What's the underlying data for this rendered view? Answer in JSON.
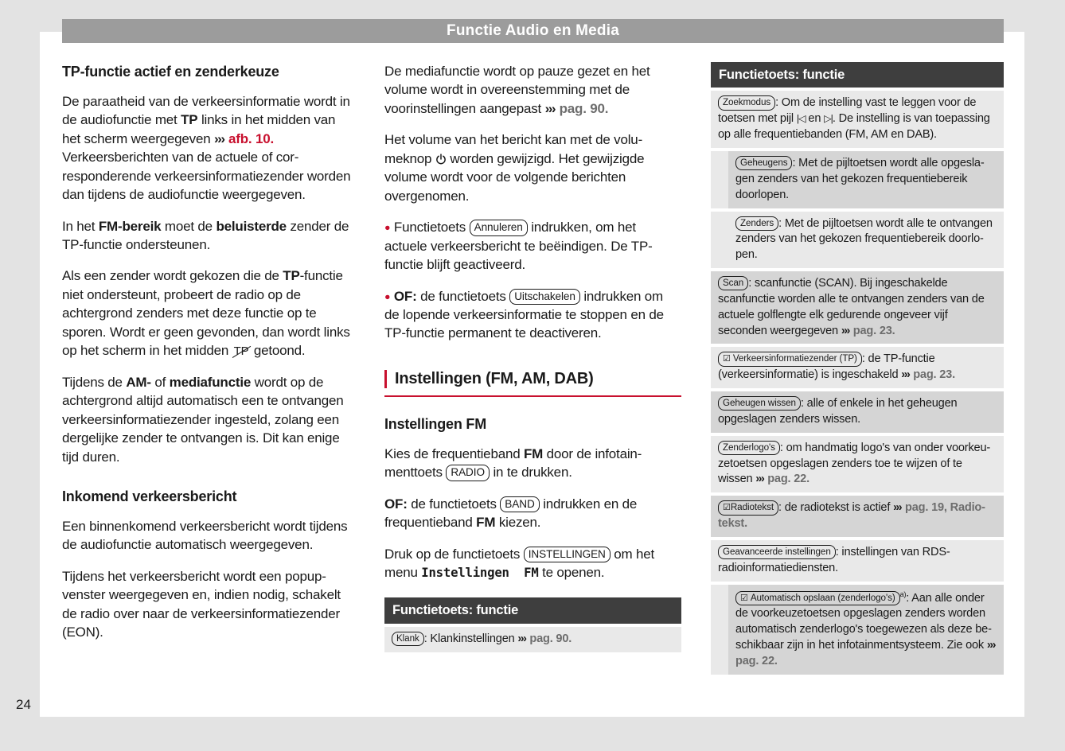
{
  "page_header": {
    "title": "Functie Audio en Media"
  },
  "page_number": "24",
  "colors": {
    "accent_red": "#c8102e",
    "header_gray": "#9c9c9c",
    "table_header_dark": "#3e3e3e",
    "row_light": "#e9e9e9",
    "row_dark": "#d5d5d5",
    "page_margin_gray": "#e3e3e3"
  },
  "icons": {
    "checkbox": "☑",
    "tp_off": "TP",
    "seek_back": "|◁",
    "seek_fwd": "▷|",
    "power": "power-symbol",
    "chevrons": "›››"
  },
  "left": {
    "heading1": "TP-functie actief en zenderkeuze",
    "p1": [
      {
        "t": "De paraatheid van de verkeersinformatie wordt in de audiofunctie met "
      },
      {
        "b": "TP"
      },
      {
        "t": " links in het midden van het scherm weergegeven "
      },
      {
        "chev": "›››"
      },
      {
        "figref": " afb. 10."
      },
      {
        "t": " Verkeersberichten van de actuele of cor­responderende verkeersinformatiezender worden dan tijdens de audiofunctie weerge­geven."
      }
    ],
    "p2": [
      {
        "t": "In het "
      },
      {
        "b": "FM-bereik"
      },
      {
        "t": " moet de "
      },
      {
        "b": "beluisterde"
      },
      {
        "t": " zender de TP-functie ondersteunen."
      }
    ],
    "p3": [
      {
        "t": "Als een zender wordt gekozen die de "
      },
      {
        "b": "TP"
      },
      {
        "t": "-functie niet ondersteunt, probeert de radio op de achtergrond zenders met deze functie op te sporen. Wordt er geen gevonden, dan wordt links op het scherm in het midden "
      },
      {
        "icon": "tp-off"
      },
      {
        "t": " getoond."
      }
    ],
    "p4": [
      {
        "t": "Tijdens de "
      },
      {
        "b": "AM-"
      },
      {
        "t": " of "
      },
      {
        "b": "mediafunctie"
      },
      {
        "t": " wordt op de achtergrond altijd automatisch een te ont­vangen verkeersinformatiezender ingesteld, zolang een dergelijke zender te ontvangen is. Dit kan enige tijd duren."
      }
    ],
    "heading2": "Inkomend verkeersbericht",
    "p5": [
      {
        "t": "Een binnenkomend verkeersbericht wordt tij­dens de audiofunctie automatisch weergege­ven."
      }
    ],
    "p6": [
      {
        "t": "Tijdens het verkeersbericht wordt een popup­venster weergegeven en, indien nodig, scha­kelt de radio over naar de verkeersinformatie­zender (EON)."
      }
    ]
  },
  "middle": {
    "p1": [
      {
        "t": "De mediafunctie wordt op pauze gezet en het volume wordt in overeenstemming met de voorinstellingen aangepast "
      },
      {
        "chev": "›››"
      },
      {
        "ref": " pag. 90."
      }
    ],
    "p2": [
      {
        "t": "Het volume van het bericht kan met de volu­meknop "
      },
      {
        "icon": "power"
      },
      {
        "t": " worden gewijzigd. Het gewijzigde volume wordt voor de volgende berichten overgenomen."
      }
    ],
    "bullets": [
      [
        {
          "dot": "●"
        },
        {
          "t": " Functietoets "
        },
        {
          "key": "Annuleren"
        },
        {
          "t": " indrukken, om het actuele verkeersbericht te beëindigen. De TP-functie blijft geactiveerd."
        }
      ],
      [
        {
          "dot": "●"
        },
        {
          "t": " "
        },
        {
          "b": "OF:"
        },
        {
          "t": " de functietoets "
        },
        {
          "key": "Uitschakelen"
        },
        {
          "t": " indrukken om de lopende verkeersinformatie te stop­pen en de TP-functie permanent te deactive­ren."
        }
      ]
    ],
    "section_heading": "Instellingen (FM, AM, DAB)",
    "sub_heading": "Instellingen FM",
    "p3": [
      {
        "t": "Kies de frequentieband "
      },
      {
        "b": "FM"
      },
      {
        "t": " door de infotain­menttoets "
      },
      {
        "key": "RADIO"
      },
      {
        "t": " in te drukken."
      }
    ],
    "p4": [
      {
        "b": "OF:"
      },
      {
        "t": " de functietoets "
      },
      {
        "key": "BAND"
      },
      {
        "t": " indrukken en de frequentieband "
      },
      {
        "b": "FM"
      },
      {
        "t": " kiezen."
      }
    ],
    "p5": [
      {
        "t": "Druk op de functietoets "
      },
      {
        "key": "INSTELLINGEN"
      },
      {
        "t": " om het menu "
      },
      {
        "mono": "Instellingen  FM"
      },
      {
        "t": " te openen."
      }
    ],
    "table": {
      "header": "Functietoets: functie",
      "rows": [
        {
          "shade": "light",
          "indent": false,
          "runs": [
            {
              "key": "Klank"
            },
            {
              "t": ": Klankinstellingen "
            },
            {
              "chev": "›››"
            },
            {
              "ref": " pag. 90."
            }
          ]
        }
      ]
    }
  },
  "right_table": {
    "header": "Functietoets: functie",
    "rows": [
      {
        "shade": "light",
        "indent": false,
        "runs": [
          {
            "key": "Zoekmodus"
          },
          {
            "t": ": Om de instelling vast te leggen voor de toet­sen met pijl "
          },
          {
            "icon": "prev"
          },
          {
            "t": " en "
          },
          {
            "icon": "next"
          },
          {
            "t": ". De instelling is van toepassing op alle frequentiebanden (FM, AM en DAB)."
          }
        ]
      },
      {
        "shade": "dark",
        "indent": true,
        "runs": [
          {
            "key": "Geheugens"
          },
          {
            "t": ": Met de pijltoetsen wordt alle opgesla­gen zenders van het gekozen frequentiebereik doorlopen."
          }
        ]
      },
      {
        "shade": "light",
        "indent": true,
        "runs": [
          {
            "key": "Zenders"
          },
          {
            "t": ": Met de pijltoetsen wordt alle te ontvangen zenders van het gekozen frequentiebereik doorlo­pen."
          }
        ]
      },
      {
        "shade": "dark",
        "indent": false,
        "runs": [
          {
            "key": "Scan"
          },
          {
            "t": ": scanfunctie (SCAN). Bij ingeschakelde scanfunc­tie worden alle te ontvangen zenders van de actuele golflengte elk gedurende ongeveer vijf seconden weer­gegeven "
          },
          {
            "chev": "›››"
          },
          {
            "ref": " pag. 23."
          }
        ]
      },
      {
        "shade": "light",
        "indent": false,
        "runs": [
          {
            "key": "Verkeersinformatiezender (TP)",
            "check": true
          },
          {
            "t": ": de TP-functie (verkeersin­formatie) is ingeschakeld "
          },
          {
            "chev": "›››"
          },
          {
            "ref": " pag. 23."
          }
        ]
      },
      {
        "shade": "dark",
        "indent": false,
        "runs": [
          {
            "key": "Geheugen wissen"
          },
          {
            "t": ": alle of enkele in het geheugen opgesla­gen zenders wissen."
          }
        ]
      },
      {
        "shade": "light",
        "indent": false,
        "runs": [
          {
            "key": "Zenderlogo's"
          },
          {
            "t": ": om handmatig logo's van onder voorkeu­zetoetsen opgeslagen zenders toe te wijzen of te wissen "
          },
          {
            "chev": "›››"
          },
          {
            "ref": " pag. 22."
          }
        ]
      },
      {
        "shade": "dark",
        "indent": false,
        "runs": [
          {
            "key": "Radiotekst",
            "check": true,
            "nospace": true
          },
          {
            "t": ": de radiotekst is actief "
          },
          {
            "chev": "›››"
          },
          {
            "ref": " pag. 19, Radio­tekst."
          }
        ]
      },
      {
        "shade": "light",
        "indent": false,
        "runs": [
          {
            "key": "Geavanceerde instellingen"
          },
          {
            "t": ": instellingen van RDS-radioinfor­matiediensten."
          }
        ]
      },
      {
        "shade": "dark",
        "indent": true,
        "runs": [
          {
            "key": "Automatisch opslaan (zenderlogo's)",
            "check": true,
            "sup": "a)"
          },
          {
            "t": ": Aan alle onder de voorkeuzetoetsen opgeslagen zenders worden automatisch zenderlogo's toegewezen als deze be­schikbaar zijn in het infotainmentsysteem. Zie ook "
          },
          {
            "chev": "›››"
          },
          {
            "ref": " pag. 22."
          }
        ]
      }
    ]
  }
}
